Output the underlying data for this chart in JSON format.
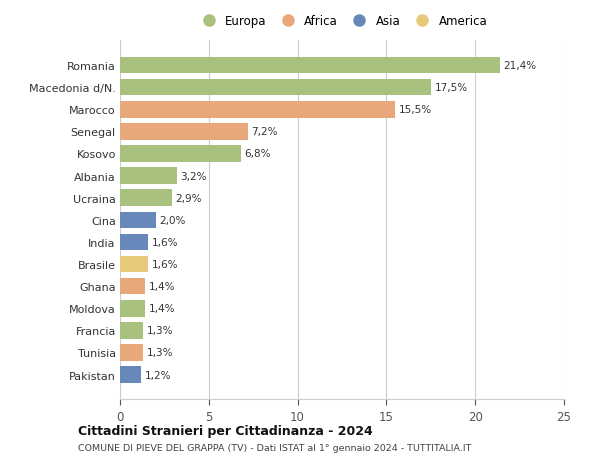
{
  "categories": [
    "Pakistan",
    "Tunisia",
    "Francia",
    "Moldova",
    "Ghana",
    "Brasile",
    "India",
    "Cina",
    "Ucraina",
    "Albania",
    "Kosovo",
    "Senegal",
    "Marocco",
    "Macedonia d/N.",
    "Romania"
  ],
  "values": [
    1.2,
    1.3,
    1.3,
    1.4,
    1.4,
    1.6,
    1.6,
    2.0,
    2.9,
    3.2,
    6.8,
    7.2,
    15.5,
    17.5,
    21.4
  ],
  "labels": [
    "1,2%",
    "1,3%",
    "1,3%",
    "1,4%",
    "1,4%",
    "1,6%",
    "1,6%",
    "2,0%",
    "2,9%",
    "3,2%",
    "6,8%",
    "7,2%",
    "15,5%",
    "17,5%",
    "21,4%"
  ],
  "colors": [
    "#6688bb",
    "#e8a87c",
    "#a8c17e",
    "#a8c17e",
    "#e8a87c",
    "#e8c97a",
    "#6688bb",
    "#6688bb",
    "#a8c17e",
    "#a8c17e",
    "#a8c17e",
    "#e8a87c",
    "#e8a87c",
    "#a8c17e",
    "#a8c17e"
  ],
  "legend_labels": [
    "Europa",
    "Africa",
    "Asia",
    "America"
  ],
  "legend_colors": [
    "#a8c17e",
    "#e8a87c",
    "#6688bb",
    "#e8c97a"
  ],
  "title1": "Cittadini Stranieri per Cittadinanza - 2024",
  "title2": "COMUNE DI PIEVE DEL GRAPPA (TV) - Dati ISTAT al 1° gennaio 2024 - TUTTITALIA.IT",
  "xlim": [
    0,
    25
  ],
  "xticks": [
    0,
    5,
    10,
    15,
    20,
    25
  ],
  "background_color": "#ffffff",
  "grid_color": "#cccccc",
  "bar_height": 0.75
}
